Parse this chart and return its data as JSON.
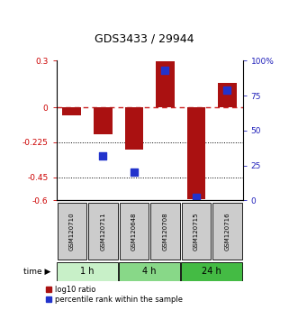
{
  "title": "GDS3433 / 29944",
  "samples": [
    "GSM120710",
    "GSM120711",
    "GSM120648",
    "GSM120708",
    "GSM120715",
    "GSM120716"
  ],
  "time_groups": [
    {
      "label": "1 h",
      "samples": [
        0,
        1
      ],
      "color": "#c8f0c8"
    },
    {
      "label": "4 h",
      "samples": [
        2,
        3
      ],
      "color": "#88d888"
    },
    {
      "label": "24 h",
      "samples": [
        4,
        5
      ],
      "color": "#44bb44"
    }
  ],
  "log10_ratio": [
    -0.05,
    -0.175,
    -0.27,
    0.295,
    -0.59,
    0.16
  ],
  "percentile_rank": [
    null,
    32,
    20,
    93,
    2,
    79
  ],
  "ylim_left": [
    -0.6,
    0.3
  ],
  "ylim_right": [
    0,
    100
  ],
  "yticks_left": [
    0.3,
    0.0,
    -0.225,
    -0.45,
    -0.6
  ],
  "yticks_left_labels": [
    "0.3",
    "0",
    "-0.225",
    "-0.45",
    "-0.6"
  ],
  "yticks_right": [
    100,
    75,
    50,
    25,
    0
  ],
  "yticks_right_labels": [
    "100%",
    "75",
    "50",
    "25",
    "0"
  ],
  "hlines_dotted": [
    -0.225,
    -0.45
  ],
  "hline_dashed": 0.0,
  "bar_color": "#aa1111",
  "dot_color": "#2233cc",
  "bar_width": 0.6,
  "dot_size": 40,
  "background_color": "#ffffff",
  "label_color_left": "#cc0000",
  "label_color_right": "#2222bb",
  "zero_line_color": "#cc2222",
  "sample_box_color": "#cccccc",
  "legend_labels": [
    "log10 ratio",
    "percentile rank within the sample"
  ]
}
